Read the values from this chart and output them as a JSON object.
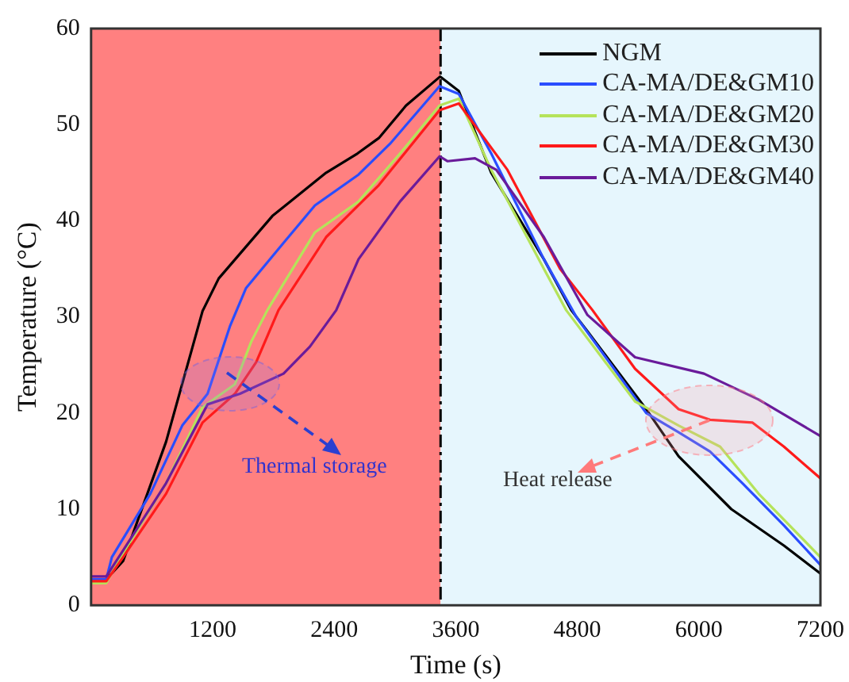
{
  "chart_data": {
    "type": "line",
    "xlabel": "Time (s)",
    "ylabel": "Temperature (°C)",
    "xlim": [
      0,
      7200
    ],
    "xticks": [
      1200,
      2400,
      3600,
      4800,
      6000,
      7200
    ],
    "ylim": [
      0,
      60
    ],
    "yticks": [
      0,
      10,
      20,
      30,
      40,
      50,
      60
    ],
    "grid": false,
    "legend": "top right",
    "marker": "none",
    "line_style": "solid",
    "bands": [
      {
        "axis": "x",
        "from": 0,
        "to": 3450,
        "color": "#ff8080"
      },
      {
        "axis": "x",
        "from": 3450,
        "to": 7200,
        "color": "#e6f6fd"
      }
    ],
    "ref_lines": [
      {
        "axis": "x",
        "value": 3450,
        "color": "#000000",
        "line_style": "dashed"
      }
    ],
    "annotations": [
      {
        "text": "Thermal storage",
        "x": 1375,
        "y": 23
      },
      {
        "text": "Heat release",
        "x": 6110,
        "y": 19.3
      }
    ],
    "series": [
      {
        "name": "NGM",
        "color": "#000000",
        "x": [
          0,
          150,
          316,
          740,
          1100,
          1260,
          1790,
          2320,
          2630,
          2840,
          3110,
          3445,
          3630,
          3950,
          4470,
          4740,
          4900,
          5480,
          5800,
          6320,
          6840,
          7200
        ],
        "values": [
          2.7,
          2.7,
          4.6,
          17,
          30.6,
          34,
          40.5,
          45,
          47,
          48.6,
          52,
          55,
          53.5,
          45,
          36,
          30.7,
          28.5,
          20.4,
          15.5,
          10,
          6.2,
          3.3
        ]
      },
      {
        "name": "CA-MA/DE&GM10",
        "color": "#2a4dff",
        "x": [
          0,
          150,
          205,
          585,
          900,
          1150,
          1370,
          1530,
          1900,
          2210,
          2640,
          2950,
          3440,
          3630,
          3950,
          4470,
          4790,
          5480,
          5800,
          6110,
          6430,
          6840,
          7200
        ],
        "values": [
          2.7,
          2.7,
          5,
          11.6,
          18.7,
          22,
          29,
          33,
          37.7,
          41.6,
          44.8,
          48,
          54,
          53.2,
          47,
          36,
          30,
          20,
          18,
          16,
          12.7,
          8.3,
          4.2
        ]
      },
      {
        "name": "CA-MA/DE&GM20",
        "color": "#b5e35a",
        "x": [
          0,
          150,
          270,
          740,
          1100,
          1420,
          1580,
          1740,
          2210,
          2640,
          3050,
          3440,
          3630,
          3950,
          4470,
          4690,
          5370,
          5800,
          6210,
          6590,
          7200
        ],
        "values": [
          2.3,
          2.3,
          4.6,
          12.7,
          20.6,
          23,
          27.4,
          30.7,
          38.8,
          42,
          47,
          52,
          52.7,
          45.3,
          35,
          30.7,
          21.2,
          18.7,
          16.5,
          11.6,
          5
        ]
      },
      {
        "name": "CA-MA/DE&GM30",
        "color": "#ff1a1a",
        "x": [
          0,
          150,
          316,
          740,
          1100,
          1420,
          1630,
          1850,
          2320,
          2840,
          3440,
          3630,
          4110,
          4630,
          4950,
          5370,
          5800,
          6110,
          6530,
          6840,
          7200
        ],
        "values": [
          2.5,
          2.5,
          5,
          11.6,
          19,
          22,
          25.3,
          30.7,
          38.3,
          43.7,
          51.5,
          52.2,
          45.3,
          35,
          30.7,
          24.6,
          20.4,
          19.3,
          19,
          16.5,
          13.2
        ]
      },
      {
        "name": "CA-MA/DE&GM40",
        "color": "#6a1b9a",
        "x": [
          0,
          150,
          316,
          740,
          1150,
          1470,
          1900,
          2160,
          2420,
          2640,
          3050,
          3440,
          3520,
          3790,
          4000,
          4470,
          4900,
          5370,
          6050,
          6590,
          7200
        ],
        "values": [
          3,
          3,
          5.7,
          12.7,
          20.9,
          22,
          24.1,
          26.9,
          30.7,
          36,
          42,
          46.7,
          46.2,
          46.5,
          45.3,
          38.3,
          30.2,
          25.8,
          24.1,
          21.4,
          17.6
        ]
      }
    ]
  }
}
